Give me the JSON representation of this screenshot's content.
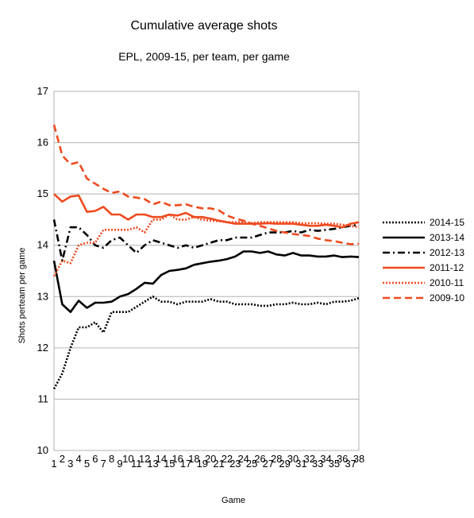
{
  "chart_data": {
    "type": "line",
    "title": "Cumulative average shots",
    "subtitle": "EPL, 2009-15, per team, per game",
    "xlabel": "Game",
    "ylabel": "Shots perteam per game",
    "ylim": [
      10,
      17
    ],
    "yticks": [
      "10",
      "11",
      "12",
      "13",
      "14",
      "15",
      "16",
      "17"
    ],
    "xlim": [
      1,
      38
    ],
    "xticks_lower": [
      "1",
      "3",
      "5",
      "7",
      "9",
      "11",
      "13",
      "15",
      "17",
      "19",
      "21",
      "23",
      "25",
      "27",
      "29",
      "31",
      "33",
      "35",
      "37"
    ],
    "xticks_upper": [
      "2",
      "4",
      "6",
      "8",
      "10",
      "12",
      "14",
      "16",
      "18",
      "20",
      "22",
      "24",
      "26",
      "28",
      "30",
      "32",
      "34",
      "36",
      "38"
    ],
    "grid": "horizontal",
    "legend_position": "right",
    "x": [
      1,
      2,
      3,
      4,
      5,
      6,
      7,
      8,
      9,
      10,
      11,
      12,
      13,
      14,
      15,
      16,
      17,
      18,
      19,
      20,
      21,
      22,
      23,
      24,
      25,
      26,
      27,
      28,
      29,
      30,
      31,
      32,
      33,
      34,
      35,
      36,
      37,
      38
    ],
    "series": [
      {
        "name": "2014-15",
        "color": "#000000",
        "dash": "dotted",
        "values": [
          11.2,
          11.5,
          12.0,
          12.4,
          12.4,
          12.5,
          12.3,
          12.7,
          12.7,
          12.7,
          12.8,
          12.9,
          13.0,
          12.9,
          12.9,
          12.85,
          12.9,
          12.9,
          12.9,
          12.95,
          12.9,
          12.9,
          12.85,
          12.85,
          12.85,
          12.82,
          12.82,
          12.85,
          12.85,
          12.88,
          12.85,
          12.85,
          12.88,
          12.85,
          12.9,
          12.9,
          12.92,
          12.97
        ]
      },
      {
        "name": "2013-14",
        "color": "#000000",
        "dash": "solid",
        "values": [
          13.7,
          12.85,
          12.7,
          12.92,
          12.78,
          12.88,
          12.88,
          12.9,
          13.0,
          13.05,
          13.15,
          13.27,
          13.25,
          13.42,
          13.5,
          13.52,
          13.55,
          13.62,
          13.65,
          13.68,
          13.7,
          13.73,
          13.78,
          13.88,
          13.88,
          13.85,
          13.88,
          13.82,
          13.8,
          13.85,
          13.8,
          13.8,
          13.78,
          13.78,
          13.8,
          13.77,
          13.78,
          13.77
        ]
      },
      {
        "name": "2012-13",
        "color": "#000000",
        "dash": "dashdot",
        "values": [
          14.5,
          13.7,
          14.35,
          14.35,
          14.2,
          14.0,
          13.95,
          14.1,
          14.15,
          14.0,
          13.85,
          14.0,
          14.1,
          14.05,
          14.0,
          13.95,
          14.0,
          13.95,
          14.0,
          14.05,
          14.1,
          14.1,
          14.15,
          14.15,
          14.15,
          14.2,
          14.25,
          14.25,
          14.25,
          14.28,
          14.25,
          14.3,
          14.28,
          14.3,
          14.32,
          14.35,
          14.38,
          14.4
        ]
      },
      {
        "name": "2011-12",
        "color": "#ee4b1f",
        "dash": "solid",
        "values": [
          15.0,
          14.85,
          14.95,
          14.97,
          14.65,
          14.67,
          14.75,
          14.6,
          14.6,
          14.5,
          14.6,
          14.6,
          14.55,
          14.55,
          14.6,
          14.58,
          14.63,
          14.55,
          14.55,
          14.52,
          14.48,
          14.45,
          14.42,
          14.42,
          14.42,
          14.42,
          14.43,
          14.42,
          14.42,
          14.42,
          14.4,
          14.38,
          14.38,
          14.4,
          14.38,
          14.35,
          14.42,
          14.45
        ]
      },
      {
        "name": "2010-11",
        "color": "#ee4b1f",
        "dash": "dotted",
        "values": [
          13.4,
          13.7,
          13.65,
          14.0,
          14.05,
          14.05,
          14.3,
          14.3,
          14.3,
          14.3,
          14.35,
          14.25,
          14.5,
          14.5,
          14.6,
          14.5,
          14.5,
          14.55,
          14.5,
          14.48,
          14.47,
          14.45,
          14.45,
          14.45,
          14.43,
          14.45,
          14.45,
          14.45,
          14.45,
          14.45,
          14.43,
          14.43,
          14.43,
          14.42,
          14.42,
          14.4,
          14.38,
          14.35
        ]
      },
      {
        "name": "2009-10",
        "color": "#ee4b1f",
        "dash": "dashdash",
        "values": [
          16.35,
          15.75,
          15.58,
          15.62,
          15.3,
          15.2,
          15.1,
          15.02,
          15.05,
          14.95,
          14.93,
          14.9,
          14.8,
          14.85,
          14.78,
          14.78,
          14.8,
          14.75,
          14.72,
          14.72,
          14.68,
          14.58,
          14.52,
          14.48,
          14.42,
          14.38,
          14.33,
          14.28,
          14.25,
          14.22,
          14.2,
          14.18,
          14.13,
          14.1,
          14.08,
          14.05,
          14.02,
          14.03
        ]
      }
    ]
  }
}
